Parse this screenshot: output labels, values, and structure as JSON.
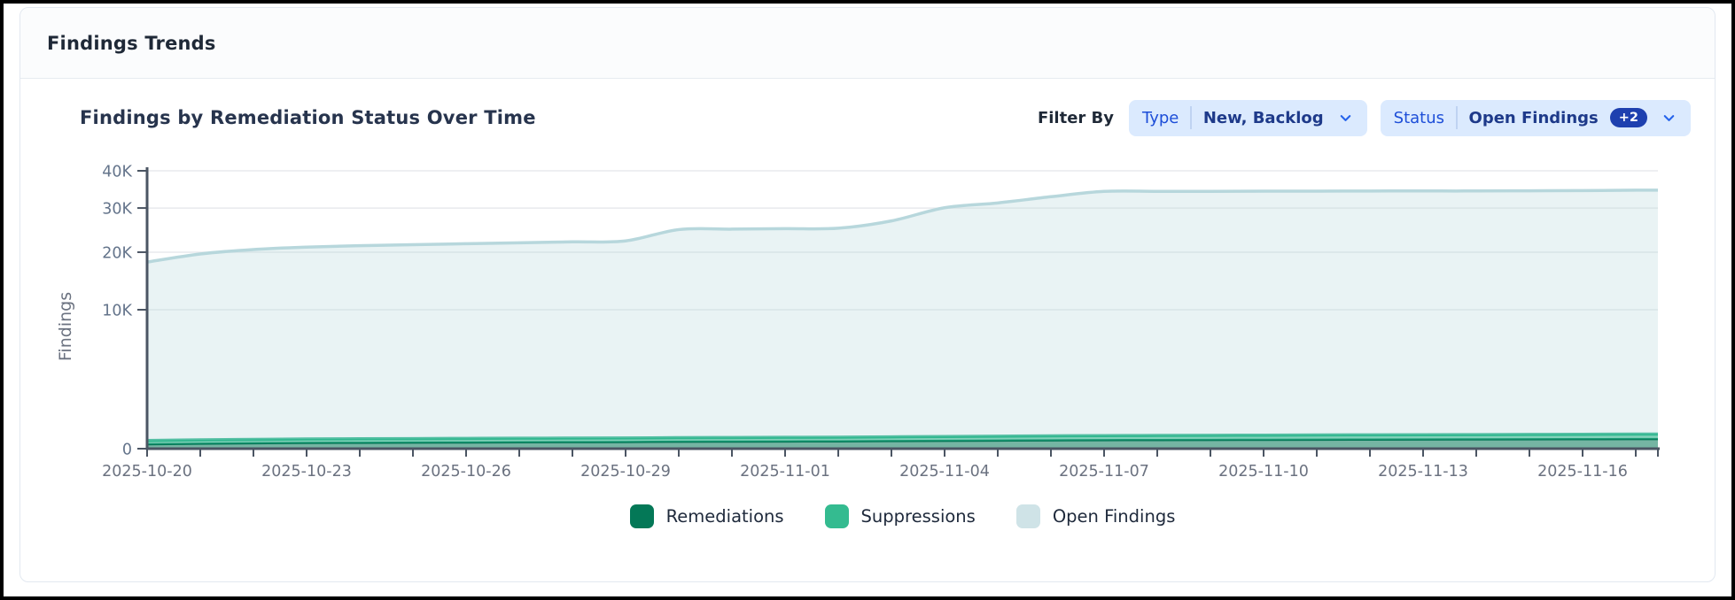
{
  "window": {
    "title": "Findings Trends"
  },
  "chart_header": {
    "title": "Findings by Remediation Status Over Time",
    "filter_by_label": "Filter By"
  },
  "filters": [
    {
      "label": "Type",
      "value": "New, Backlog",
      "badge": null,
      "icon": "chevron-down"
    },
    {
      "label": "Status",
      "value": "Open Findings",
      "badge": "+2",
      "icon": "chevron-down"
    }
  ],
  "colors": {
    "frame_border": "#000000",
    "card_border": "#e2e8f0",
    "header_bg": "#fbfcfd",
    "chip_bg": "#dbeafe",
    "chip_label_text": "#1d4ed8",
    "chip_value_text": "#1e3a8a",
    "badge_bg": "#1e40af",
    "text_dark": "#1f2937",
    "text_muted": "#64748b",
    "grid_line": "#e8eaed",
    "axis_line": "#4b5563"
  },
  "chart_data": {
    "type": "area",
    "stacked": true,
    "y_scale": "sqrt",
    "title": "Findings by Remediation Status Over Time",
    "xlabel": "",
    "ylabel": "Findings",
    "ylim": [
      0,
      40000
    ],
    "grid": "horizontal",
    "legend_position": "bottom",
    "y_ticks": [
      {
        "value": 0,
        "label": "0"
      },
      {
        "value": 10000,
        "label": "10K"
      },
      {
        "value": 20000,
        "label": "20K"
      },
      {
        "value": 30000,
        "label": "30K"
      },
      {
        "value": 40000,
        "label": "40K"
      }
    ],
    "x": [
      "2025-10-20",
      "2025-10-21",
      "2025-10-22",
      "2025-10-23",
      "2025-10-24",
      "2025-10-25",
      "2025-10-26",
      "2025-10-27",
      "2025-10-28",
      "2025-10-29",
      "2025-10-30",
      "2025-10-31",
      "2025-11-01",
      "2025-11-02",
      "2025-11-03",
      "2025-11-04",
      "2025-11-05",
      "2025-11-06",
      "2025-11-07",
      "2025-11-08",
      "2025-11-09",
      "2025-11-10",
      "2025-11-11",
      "2025-11-12",
      "2025-11-13",
      "2025-11-14",
      "2025-11-15",
      "2025-11-16",
      "2025-11-17"
    ],
    "x_tick_label_interval": 3,
    "series": [
      {
        "name": "Remediations",
        "stroke": "#047857",
        "fill": "rgba(4,120,87,0.55)",
        "swatch": "#047857",
        "values": [
          10,
          13,
          15,
          17,
          18,
          19,
          20,
          21,
          22,
          23,
          25,
          26,
          27,
          28,
          30,
          32,
          34,
          36,
          38,
          39,
          40,
          41,
          42,
          43,
          44,
          45,
          46,
          47,
          48
        ]
      },
      {
        "name": "Suppressions",
        "stroke": "#2fb78e",
        "fill": "rgba(46,180,140,0.6)",
        "swatch": "#34bb90",
        "values": [
          25,
          28,
          30,
          32,
          33,
          34,
          35,
          36,
          36,
          37,
          38,
          39,
          40,
          41,
          43,
          45,
          47,
          49,
          51,
          52,
          53,
          54,
          55,
          56,
          57,
          58,
          59,
          60,
          62
        ]
      },
      {
        "name": "Open Findings",
        "stroke": "#b7d7dc",
        "fill": "rgba(183,215,220,0.3)",
        "swatch": "#cfe3e7",
        "values": [
          18000,
          19600,
          20500,
          21000,
          21300,
          21500,
          21700,
          21900,
          22100,
          22300,
          24800,
          24900,
          25000,
          25100,
          26800,
          30000,
          31200,
          32800,
          34200,
          34200,
          34200,
          34250,
          34250,
          34300,
          34300,
          34300,
          34350,
          34400,
          34500
        ]
      }
    ]
  }
}
